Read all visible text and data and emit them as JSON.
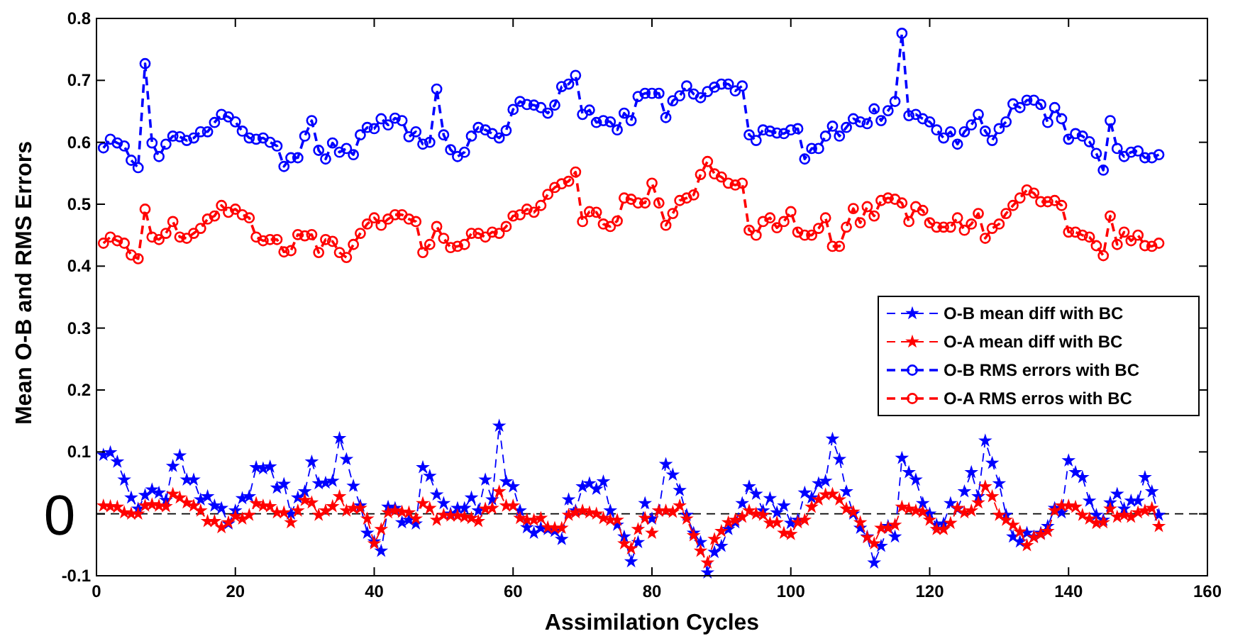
{
  "chart_data": {
    "type": "line",
    "xlabel": "Assimilation Cycles",
    "ylabel": "Mean O-B and RMS Errors",
    "x": [
      1,
      2,
      3,
      4,
      5,
      6,
      7,
      8,
      9,
      10,
      11,
      12,
      13,
      14,
      15,
      16,
      17,
      18,
      19,
      20,
      21,
      22,
      23,
      24,
      25,
      26,
      27,
      28,
      29,
      30,
      31,
      32,
      33,
      34,
      35,
      36,
      37,
      38,
      39,
      40,
      41,
      42,
      43,
      44,
      45,
      46,
      47,
      48,
      49,
      50,
      51,
      52,
      53,
      54,
      55,
      56,
      57,
      58,
      59,
      60,
      61,
      62,
      63,
      64,
      65,
      66,
      67,
      68,
      69,
      70,
      71,
      72,
      73,
      74,
      75,
      76,
      77,
      78,
      79,
      80,
      81,
      82,
      83,
      84,
      85,
      86,
      87,
      88,
      89,
      90,
      91,
      92,
      93,
      94,
      95,
      96,
      97,
      98,
      99,
      100,
      101,
      102,
      103,
      104,
      105,
      106,
      107,
      108,
      109,
      110,
      111,
      112,
      113,
      114,
      115,
      116,
      117,
      118,
      119,
      120,
      121,
      122,
      123,
      124,
      125,
      126,
      127,
      128,
      129,
      130,
      131,
      132,
      133,
      134,
      135,
      136,
      137,
      138,
      139,
      140,
      141,
      142,
      143,
      144,
      145,
      146,
      147,
      148,
      149,
      150,
      151,
      152,
      153
    ],
    "series": [
      {
        "name": "O-B mean diff with BC",
        "color": "#0000ff",
        "marker": "star",
        "values": [
          0.095,
          0.099,
          0.084,
          0.055,
          0.026,
          0.008,
          0.03,
          0.039,
          0.034,
          0.022,
          0.077,
          0.094,
          0.055,
          0.055,
          0.023,
          0.028,
          0.013,
          0.009,
          -0.016,
          0.005,
          0.025,
          0.028,
          0.075,
          0.073,
          0.076,
          0.042,
          0.048,
          0.0,
          0.026,
          0.036,
          0.084,
          0.049,
          0.05,
          0.053,
          0.122,
          0.088,
          0.045,
          0.013,
          -0.031,
          -0.045,
          -0.06,
          0.011,
          0.009,
          -0.014,
          -0.01,
          -0.016,
          0.075,
          0.061,
          0.031,
          0.017,
          0.0,
          0.009,
          0.009,
          0.026,
          0.005,
          0.055,
          0.023,
          0.142,
          0.052,
          0.044,
          0.005,
          -0.022,
          -0.031,
          -0.023,
          -0.025,
          -0.028,
          -0.041,
          0.023,
          0.005,
          0.044,
          0.049,
          0.04,
          0.052,
          0.005,
          -0.018,
          -0.037,
          -0.077,
          -0.046,
          0.017,
          -0.008,
          0.005,
          0.08,
          0.063,
          0.038,
          -0.002,
          -0.031,
          -0.046,
          -0.095,
          -0.062,
          -0.052,
          -0.025,
          -0.014,
          0.017,
          0.044,
          0.032,
          0.005,
          0.025,
          0.002,
          0.013,
          -0.015,
          -0.01,
          0.034,
          0.026,
          0.049,
          0.053,
          0.121,
          0.088,
          0.036,
          0.0,
          -0.023,
          -0.037,
          -0.079,
          -0.052,
          -0.02,
          -0.037,
          0.09,
          0.067,
          0.055,
          0.017,
          0.0,
          -0.018,
          -0.016,
          0.017,
          0.008,
          0.036,
          0.067,
          0.028,
          0.118,
          0.082,
          0.049,
          -0.002,
          -0.037,
          -0.045,
          -0.031,
          -0.037,
          -0.031,
          -0.02,
          0.009,
          0.002,
          0.086,
          0.067,
          0.059,
          0.021,
          -0.002,
          -0.01,
          0.018,
          0.032,
          0.008,
          0.021,
          0.021,
          0.059,
          0.036,
          -0.002
        ]
      },
      {
        "name": "O-A mean diff with BC",
        "color": "#ff0000",
        "marker": "star",
        "values": [
          0.013,
          0.012,
          0.011,
          0.002,
          0.0,
          0.0,
          0.013,
          0.015,
          0.013,
          0.012,
          0.032,
          0.026,
          0.018,
          0.013,
          0.005,
          -0.012,
          -0.012,
          -0.022,
          -0.014,
          -0.004,
          -0.008,
          -0.002,
          0.017,
          0.013,
          0.012,
          0.002,
          0.002,
          -0.014,
          0.005,
          0.022,
          0.018,
          -0.002,
          0.005,
          0.012,
          0.028,
          0.005,
          0.009,
          0.009,
          -0.008,
          -0.048,
          -0.025,
          0.002,
          0.005,
          0.003,
          0.002,
          -0.008,
          0.017,
          0.009,
          -0.01,
          -0.002,
          -0.003,
          -0.003,
          -0.005,
          -0.007,
          -0.012,
          0.008,
          0.009,
          0.036,
          0.013,
          0.013,
          -0.007,
          -0.01,
          -0.01,
          -0.007,
          -0.022,
          -0.023,
          -0.023,
          -0.002,
          0.002,
          0.005,
          0.002,
          0.0,
          -0.007,
          -0.01,
          -0.01,
          -0.048,
          -0.056,
          -0.025,
          -0.007,
          -0.031,
          0.005,
          0.005,
          0.003,
          0.013,
          -0.008,
          -0.035,
          -0.06,
          -0.079,
          -0.041,
          -0.028,
          -0.014,
          -0.01,
          -0.005,
          0.005,
          0.0,
          -0.002,
          -0.015,
          -0.014,
          -0.031,
          -0.033,
          -0.014,
          -0.01,
          0.011,
          0.023,
          0.031,
          0.032,
          0.023,
          0.008,
          0.003,
          -0.014,
          -0.038,
          -0.048,
          -0.023,
          -0.023,
          -0.018,
          0.011,
          0.008,
          0.005,
          0.003,
          -0.01,
          -0.025,
          -0.025,
          -0.015,
          0.009,
          0.002,
          0.005,
          0.018,
          0.044,
          0.028,
          -0.002,
          -0.01,
          -0.018,
          -0.029,
          -0.051,
          -0.038,
          -0.033,
          -0.028,
          0.005,
          0.013,
          0.013,
          0.011,
          -0.002,
          -0.008,
          -0.015,
          -0.014,
          0.008,
          -0.005,
          -0.002,
          -0.005,
          0.002,
          0.005,
          0.009,
          -0.02
        ]
      },
      {
        "name": "O-B RMS errors with BC",
        "color": "#0000ff",
        "marker": "circle",
        "values": [
          0.591,
          0.605,
          0.599,
          0.594,
          0.571,
          0.559,
          0.727,
          0.599,
          0.577,
          0.597,
          0.61,
          0.609,
          0.603,
          0.607,
          0.617,
          0.617,
          0.632,
          0.645,
          0.641,
          0.633,
          0.618,
          0.607,
          0.605,
          0.607,
          0.6,
          0.594,
          0.561,
          0.575,
          0.575,
          0.61,
          0.635,
          0.587,
          0.573,
          0.599,
          0.584,
          0.59,
          0.58,
          0.612,
          0.624,
          0.622,
          0.638,
          0.628,
          0.639,
          0.635,
          0.609,
          0.617,
          0.597,
          0.6,
          0.686,
          0.612,
          0.588,
          0.577,
          0.584,
          0.61,
          0.624,
          0.62,
          0.614,
          0.607,
          0.619,
          0.653,
          0.666,
          0.661,
          0.66,
          0.656,
          0.647,
          0.66,
          0.69,
          0.694,
          0.708,
          0.645,
          0.652,
          0.632,
          0.635,
          0.633,
          0.62,
          0.647,
          0.635,
          0.674,
          0.679,
          0.679,
          0.679,
          0.64,
          0.667,
          0.675,
          0.691,
          0.678,
          0.672,
          0.682,
          0.689,
          0.694,
          0.694,
          0.683,
          0.691,
          0.612,
          0.603,
          0.62,
          0.618,
          0.615,
          0.614,
          0.62,
          0.622,
          0.573,
          0.59,
          0.59,
          0.61,
          0.626,
          0.61,
          0.624,
          0.638,
          0.633,
          0.63,
          0.654,
          0.635,
          0.651,
          0.666,
          0.776,
          0.643,
          0.645,
          0.638,
          0.633,
          0.62,
          0.607,
          0.617,
          0.597,
          0.617,
          0.628,
          0.645,
          0.618,
          0.603,
          0.622,
          0.633,
          0.662,
          0.656,
          0.668,
          0.668,
          0.661,
          0.632,
          0.656,
          0.638,
          0.605,
          0.614,
          0.61,
          0.601,
          0.582,
          0.555,
          0.635,
          0.59,
          0.577,
          0.584,
          0.586,
          0.575,
          0.575,
          0.58
        ]
      },
      {
        "name": "O-A RMS erros with BC",
        "color": "#ff0000",
        "marker": "circle",
        "values": [
          0.437,
          0.447,
          0.441,
          0.437,
          0.418,
          0.412,
          0.492,
          0.447,
          0.443,
          0.453,
          0.472,
          0.447,
          0.445,
          0.453,
          0.461,
          0.476,
          0.481,
          0.498,
          0.487,
          0.492,
          0.483,
          0.478,
          0.447,
          0.441,
          0.443,
          0.443,
          0.423,
          0.425,
          0.451,
          0.449,
          0.451,
          0.422,
          0.443,
          0.44,
          0.422,
          0.414,
          0.435,
          0.453,
          0.468,
          0.478,
          0.466,
          0.476,
          0.483,
          0.483,
          0.476,
          0.472,
          0.422,
          0.435,
          0.464,
          0.445,
          0.43,
          0.432,
          0.435,
          0.453,
          0.453,
          0.447,
          0.455,
          0.453,
          0.464,
          0.481,
          0.483,
          0.492,
          0.487,
          0.498,
          0.516,
          0.527,
          0.533,
          0.537,
          0.552,
          0.472,
          0.488,
          0.487,
          0.468,
          0.464,
          0.473,
          0.51,
          0.508,
          0.502,
          0.502,
          0.534,
          0.502,
          0.466,
          0.485,
          0.506,
          0.51,
          0.515,
          0.548,
          0.569,
          0.549,
          0.544,
          0.534,
          0.531,
          0.534,
          0.458,
          0.45,
          0.472,
          0.478,
          0.462,
          0.472,
          0.488,
          0.455,
          0.45,
          0.45,
          0.461,
          0.478,
          0.432,
          0.432,
          0.463,
          0.493,
          0.47,
          0.496,
          0.481,
          0.506,
          0.51,
          0.508,
          0.502,
          0.472,
          0.496,
          0.49,
          0.47,
          0.463,
          0.463,
          0.463,
          0.478,
          0.458,
          0.468,
          0.485,
          0.445,
          0.461,
          0.468,
          0.485,
          0.498,
          0.51,
          0.523,
          0.518,
          0.504,
          0.504,
          0.506,
          0.498,
          0.455,
          0.455,
          0.45,
          0.447,
          0.433,
          0.417,
          0.481,
          0.435,
          0.455,
          0.441,
          0.45,
          0.433,
          0.432,
          0.437
        ]
      }
    ],
    "xlim": [
      0,
      160
    ],
    "xticks": [
      0,
      20,
      40,
      60,
      80,
      100,
      120,
      140,
      160
    ],
    "ylim": [
      -0.1,
      0.8
    ],
    "yticks": [
      -0.1,
      {
        "value": 0,
        "label": null
      },
      0.1,
      0.2,
      0.3,
      0.4,
      0.5,
      0.6,
      0.7,
      0.8
    ],
    "ref_lines": [
      {
        "axis": "y",
        "value": 0,
        "color": "#000000",
        "line_style": "dashed"
      }
    ],
    "annotations": [
      "0"
    ],
    "line_style": "dashed",
    "legend": "right",
    "grid": false
  }
}
